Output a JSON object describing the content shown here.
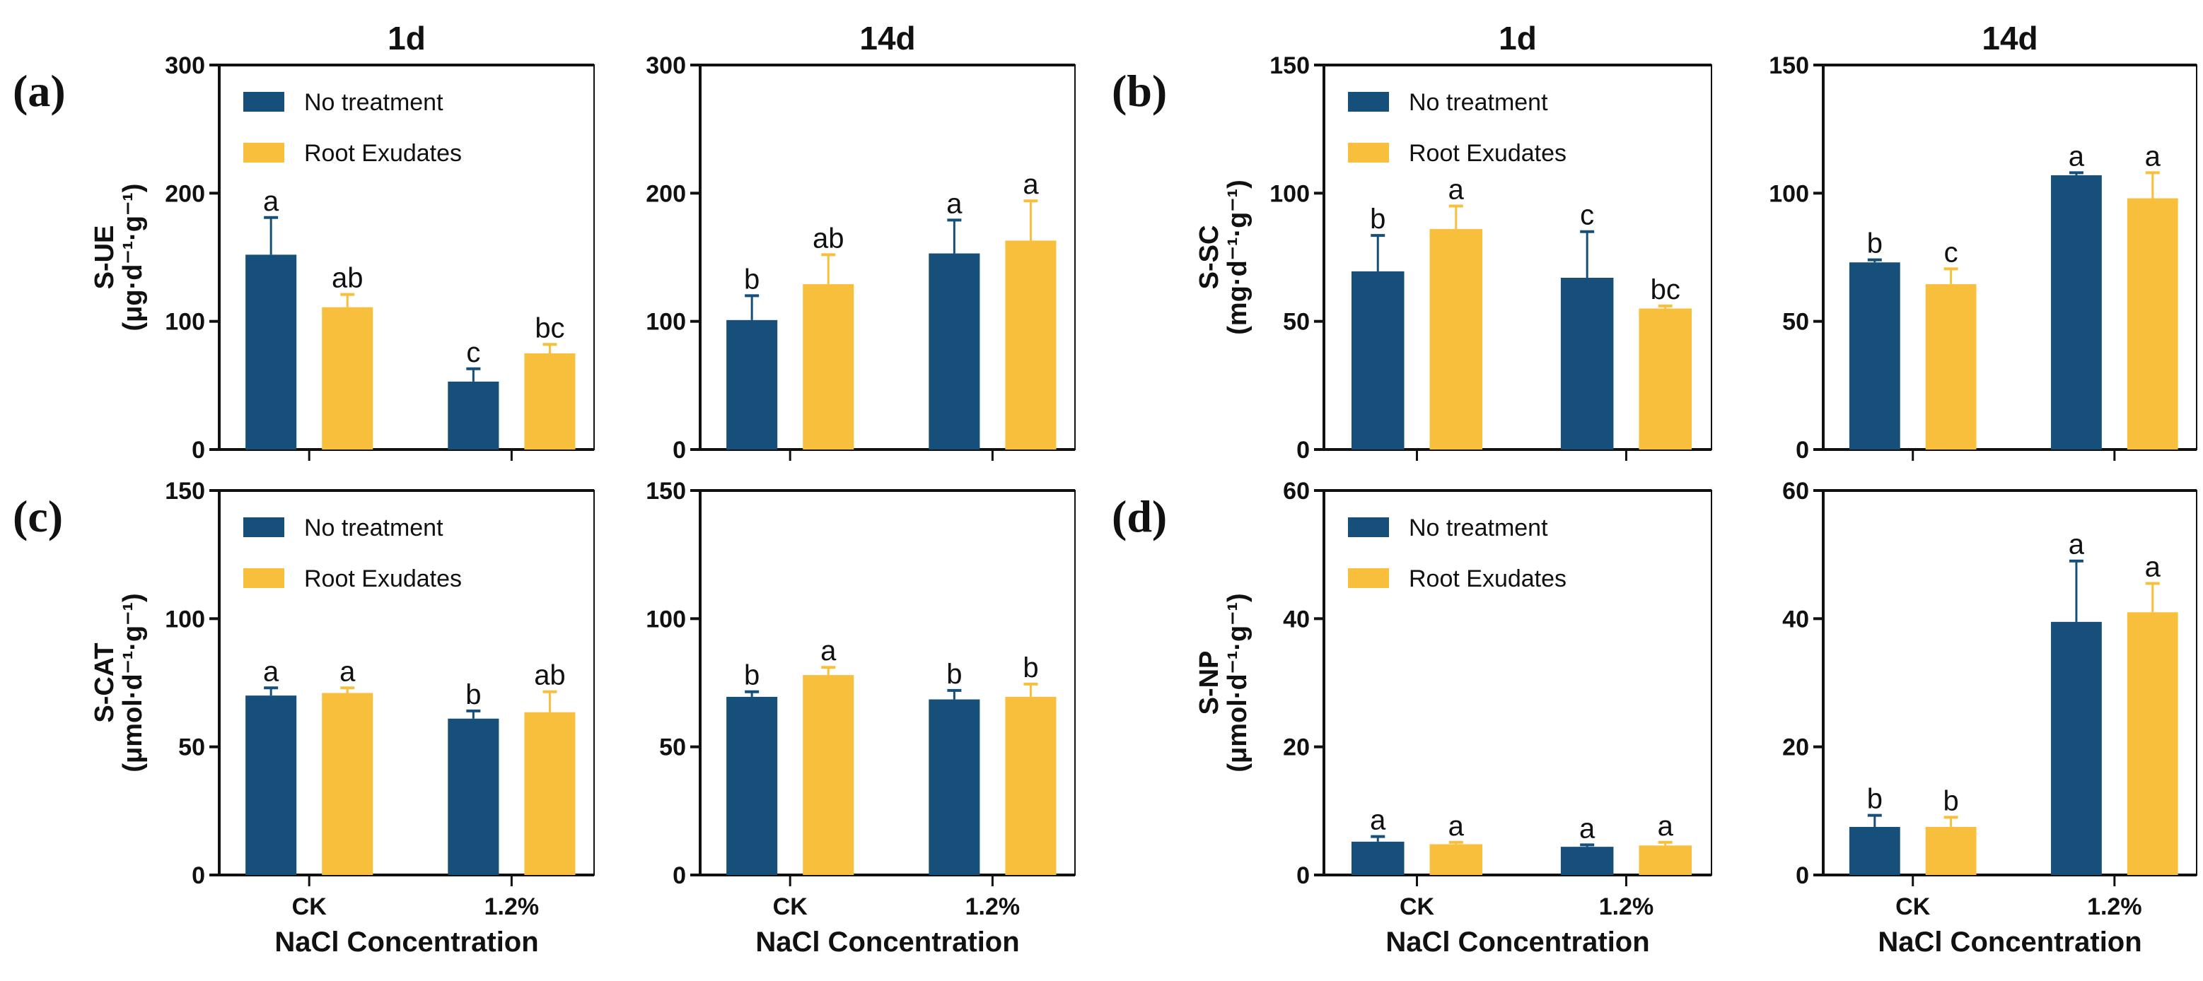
{
  "colors": {
    "no_treatment": "#154f7a",
    "root_exudates": "#f8bf3c"
  },
  "legend": [
    "No treatment",
    "Root Exudates"
  ],
  "panel_labels": [
    "(a)",
    "(b)",
    "(c)",
    "(d)"
  ],
  "x_title": "NaCl  Concentration",
  "chart_data": [
    {
      "type": "bar",
      "panel": "(a)",
      "title": "1d",
      "ylabel": "S-UE",
      "yunit": "(μg·d⁻¹·g⁻¹)",
      "ylim": [
        0,
        300
      ],
      "yticks": [
        0,
        100,
        200,
        300
      ],
      "categories": [
        "CK",
        "1.2%"
      ],
      "legend": true,
      "series": [
        {
          "name": "No treatment",
          "values": [
            152,
            53
          ],
          "errors": [
            29,
            10
          ],
          "letters": [
            "a",
            "c"
          ]
        },
        {
          "name": "Root Exudates",
          "values": [
            111,
            75
          ],
          "errors": [
            10,
            7
          ],
          "letters": [
            "ab",
            "bc"
          ]
        }
      ]
    },
    {
      "type": "bar",
      "panel": "(a)",
      "title": "14d",
      "ylabel": "",
      "yunit": "",
      "ylim": [
        0,
        300
      ],
      "yticks": [
        0,
        100,
        200,
        300
      ],
      "categories": [
        "CK",
        "1.2%"
      ],
      "legend": false,
      "series": [
        {
          "name": "No treatment",
          "values": [
            101,
            153
          ],
          "errors": [
            19,
            26
          ],
          "letters": [
            "b",
            "a"
          ]
        },
        {
          "name": "Root Exudates",
          "values": [
            129,
            163
          ],
          "errors": [
            23,
            31
          ],
          "letters": [
            "ab",
            "a"
          ]
        }
      ]
    },
    {
      "type": "bar",
      "panel": "(b)",
      "title": "1d",
      "ylabel": "S-SC",
      "yunit": "(mg·d⁻¹·g⁻¹)",
      "ylim": [
        0,
        150
      ],
      "yticks": [
        0,
        50,
        100,
        150
      ],
      "categories": [
        "CK",
        "1.2%"
      ],
      "legend": true,
      "series": [
        {
          "name": "No treatment",
          "values": [
            69.5,
            67
          ],
          "errors": [
            14,
            18
          ],
          "letters": [
            "b",
            "c"
          ]
        },
        {
          "name": "Root Exudates",
          "values": [
            86,
            55
          ],
          "errors": [
            9,
            1
          ],
          "letters": [
            "a",
            "bc"
          ]
        }
      ]
    },
    {
      "type": "bar",
      "panel": "(b)",
      "title": "14d",
      "ylabel": "",
      "yunit": "",
      "ylim": [
        0,
        150
      ],
      "yticks": [
        0,
        50,
        100,
        150
      ],
      "categories": [
        "CK",
        "1.2%"
      ],
      "legend": false,
      "series": [
        {
          "name": "No treatment",
          "values": [
            73,
            107
          ],
          "errors": [
            1,
            1
          ],
          "letters": [
            "b",
            "a"
          ]
        },
        {
          "name": "Root Exudates",
          "values": [
            64.5,
            98
          ],
          "errors": [
            6,
            10
          ],
          "letters": [
            "c",
            "a"
          ]
        }
      ]
    },
    {
      "type": "bar",
      "panel": "(c)",
      "title": "",
      "ylabel": "S-CAT",
      "yunit": "(μmol·d⁻¹·g⁻¹)",
      "ylim": [
        0,
        150
      ],
      "yticks": [
        0,
        50,
        100,
        150
      ],
      "categories": [
        "CK",
        "1.2%"
      ],
      "legend": true,
      "series": [
        {
          "name": "No treatment",
          "values": [
            70,
            61
          ],
          "errors": [
            3,
            3
          ],
          "letters": [
            "a",
            "b"
          ]
        },
        {
          "name": "Root Exudates",
          "values": [
            71,
            63.5
          ],
          "errors": [
            2,
            8
          ],
          "letters": [
            "a",
            "ab"
          ]
        }
      ]
    },
    {
      "type": "bar",
      "panel": "(c)",
      "title": "",
      "ylabel": "",
      "yunit": "",
      "ylim": [
        0,
        150
      ],
      "yticks": [
        0,
        50,
        100,
        150
      ],
      "categories": [
        "CK",
        "1.2%"
      ],
      "legend": false,
      "series": [
        {
          "name": "No treatment",
          "values": [
            69.5,
            68.5
          ],
          "errors": [
            2,
            3.5
          ],
          "letters": [
            "b",
            "b"
          ]
        },
        {
          "name": "Root Exudates",
          "values": [
            78,
            69.5
          ],
          "errors": [
            3,
            5
          ],
          "letters": [
            "a",
            "b"
          ]
        }
      ]
    },
    {
      "type": "bar",
      "panel": "(d)",
      "title": "",
      "ylabel": "S-NP",
      "yunit": "(μmol·d⁻¹·g⁻¹)",
      "ylim": [
        0,
        60
      ],
      "yticks": [
        0,
        20,
        40,
        60
      ],
      "categories": [
        "CK",
        "1.2%"
      ],
      "legend": true,
      "series": [
        {
          "name": "No treatment",
          "values": [
            5.2,
            4.4
          ],
          "errors": [
            0.8,
            0.3
          ],
          "letters": [
            "a",
            "a"
          ]
        },
        {
          "name": "Root Exudates",
          "values": [
            4.8,
            4.6
          ],
          "errors": [
            0.3,
            0.5
          ],
          "letters": [
            "a",
            "a"
          ]
        }
      ]
    },
    {
      "type": "bar",
      "panel": "(d)",
      "title": "",
      "ylabel": "",
      "yunit": "",
      "ylim": [
        0,
        60
      ],
      "yticks": [
        0,
        20,
        40,
        60
      ],
      "categories": [
        "CK",
        "1.2%"
      ],
      "legend": false,
      "series": [
        {
          "name": "No treatment",
          "values": [
            7.5,
            39.5
          ],
          "errors": [
            1.8,
            9.5
          ],
          "letters": [
            "b",
            "a"
          ]
        },
        {
          "name": "Root Exudates",
          "values": [
            7.5,
            41
          ],
          "errors": [
            1.5,
            4.5
          ],
          "letters": [
            "b",
            "a"
          ]
        }
      ]
    }
  ]
}
